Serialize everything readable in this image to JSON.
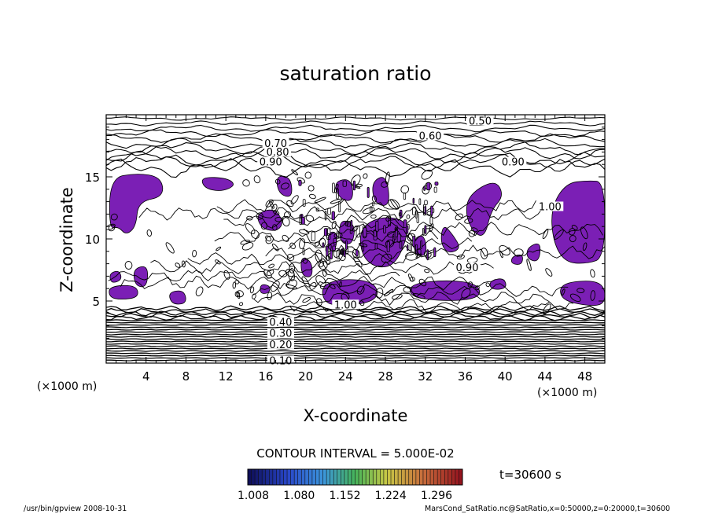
{
  "chart_data": {
    "type": "contour",
    "title": "saturation ratio",
    "xlabel": "X-coordinate",
    "ylabel": "Z-coordinate",
    "x_unit_left": "(×1000 m)",
    "x_unit_right": "(×1000 m)",
    "xlim": [
      0,
      50
    ],
    "ylim": [
      0,
      20
    ],
    "x_ticks": [
      4,
      8,
      12,
      16,
      20,
      24,
      28,
      32,
      36,
      40,
      44,
      48
    ],
    "y_ticks": [
      5,
      10,
      15
    ],
    "contour_labels": [
      {
        "text": "0.50",
        "x": 37.5,
        "y": 19.4
      },
      {
        "text": "0.60",
        "x": 32.5,
        "y": 18.2
      },
      {
        "text": "0.70",
        "x": 17.0,
        "y": 17.6
      },
      {
        "text": "0.80",
        "x": 17.2,
        "y": 16.9
      },
      {
        "text": "0.90",
        "x": 16.5,
        "y": 16.1
      },
      {
        "text": "0.90",
        "x": 40.8,
        "y": 16.1
      },
      {
        "text": "0.90",
        "x": 36.2,
        "y": 7.6
      },
      {
        "text": "1.00",
        "x": 24.0,
        "y": 4.6
      },
      {
        "text": "1.00",
        "x": 44.5,
        "y": 12.5
      },
      {
        "text": "0.40",
        "x": 17.5,
        "y": 3.2
      },
      {
        "text": "0.30",
        "x": 17.5,
        "y": 2.3
      },
      {
        "text": "0.20",
        "x": 17.5,
        "y": 1.4
      },
      {
        "text": "0.10",
        "x": 17.5,
        "y": 0.1
      }
    ],
    "contour_interval_text": "CONTOUR INTERVAL = 5.000E-02",
    "colorbar": {
      "tick_labels": [
        "1.008",
        "1.080",
        "1.152",
        "1.224",
        "1.296"
      ],
      "min": 1.008,
      "max": 1.296
    },
    "time_label": "t=30600 s",
    "fill_color": "#7b1fb5"
  },
  "footer": {
    "left": "/usr/bin/gpview   2008-10-31",
    "right": "MarsCond_SatRatio.nc@SatRatio,x=0:50000,z=0:20000,t=30600"
  }
}
